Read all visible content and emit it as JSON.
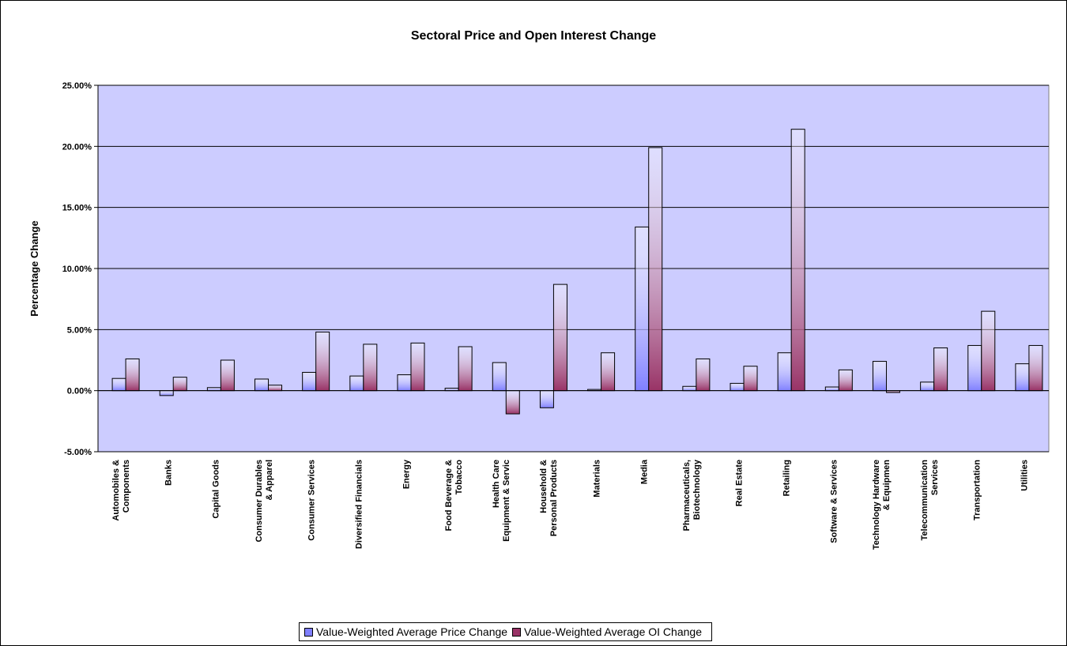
{
  "chart_data": {
    "type": "bar",
    "title": "Sectoral Price and Open Interest Change",
    "y_label": "Percentage Change",
    "categories": [
      "Automobiles &\nComponents",
      "Banks",
      "Capital Goods",
      "Consumer Durables\n& Apparel",
      "Consumer Services",
      "Diversified Financials",
      "Energy",
      "Food Beverage &\nTobacco",
      "Health Care\nEquipment & Servic",
      "Household &\nPersonal Products",
      "Materials",
      "Media",
      "Pharmaceuticals,\nBiotechnology",
      "Real Estate",
      "Retailing",
      "Software & Services",
      "Technology Hardware\n& Equipmen",
      "Telecommunication\nServices",
      "Transportation",
      "Utilities"
    ],
    "series": [
      {
        "name": "Value-Weighted Average Price Change",
        "color": "#8080ff",
        "values": [
          1.0,
          -0.4,
          0.25,
          0.95,
          1.5,
          1.2,
          1.3,
          0.2,
          2.3,
          -1.4,
          0.1,
          13.4,
          0.35,
          0.6,
          3.1,
          0.3,
          2.4,
          0.7,
          3.7,
          2.2
        ]
      },
      {
        "name": "Value-Weighted Average OI Change",
        "color": "#993366",
        "values": [
          2.6,
          1.1,
          2.5,
          0.45,
          4.8,
          3.8,
          3.9,
          3.6,
          -1.9,
          8.7,
          3.1,
          19.9,
          2.6,
          2.0,
          21.4,
          1.7,
          -0.15,
          3.5,
          6.5,
          3.7
        ]
      }
    ],
    "ylim": [
      -5,
      25
    ],
    "yticks": [
      {
        "value": -5,
        "label": "-5.00%"
      },
      {
        "value": 0,
        "label": "0.00%"
      },
      {
        "value": 5,
        "label": "5.00%"
      },
      {
        "value": 10,
        "label": "10.00%"
      },
      {
        "value": 15,
        "label": "15.00%"
      },
      {
        "value": 20,
        "label": "20.00%"
      },
      {
        "value": 25,
        "label": "25.00%"
      }
    ],
    "grid": true,
    "legend": "bottom"
  }
}
